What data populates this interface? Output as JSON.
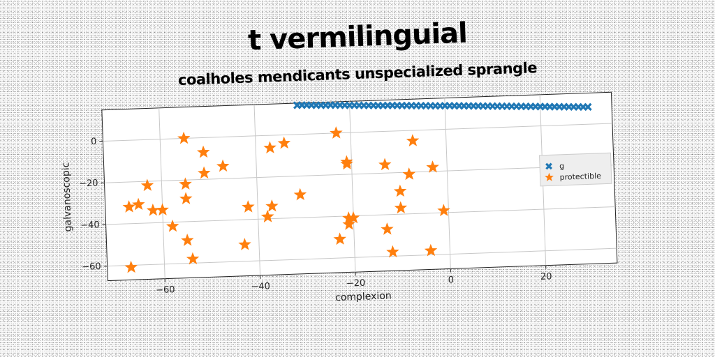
{
  "chart_data": {
    "type": "scatter",
    "title": "t vermilinguial",
    "subtitle": "coalholes mendicants unspecialized sprangle",
    "xlabel": "complexion",
    "ylabel": "galvanoscopic",
    "xlim": [
      -72,
      35
    ],
    "ylim": [
      -67,
      15
    ],
    "xticks": [
      -60,
      -40,
      -20,
      0,
      20
    ],
    "yticks": [
      0,
      -20,
      -40,
      -60
    ],
    "grid": true,
    "legend": "right",
    "series": [
      {
        "name": "g",
        "marker": "x",
        "color": "#1f77b4",
        "x": [
          -31,
          -30,
          -29,
          -28,
          -27,
          -26,
          -25,
          -24,
          -23,
          -22,
          -21,
          -20,
          -19,
          -18,
          -17,
          -16,
          -15,
          -14,
          -13,
          -12,
          -11,
          -10,
          -9,
          -8,
          -7,
          -6,
          -5,
          -4,
          -3,
          -2,
          -1,
          0,
          1,
          2,
          3,
          4,
          5,
          6,
          7,
          8,
          9,
          10,
          11,
          12,
          13,
          14,
          15,
          16,
          17,
          18,
          19,
          20,
          21,
          22,
          23,
          24,
          25,
          26,
          27,
          28,
          29,
          30
        ],
        "y": [
          14,
          14,
          13.9,
          13.8,
          13.7,
          13.6,
          13.5,
          13.5,
          13.4,
          13.3,
          13.2,
          13.1,
          13,
          12.9,
          12.8,
          12.7,
          12.6,
          12.5,
          12.4,
          12.4,
          12.3,
          12.2,
          12.1,
          12,
          11.9,
          11.8,
          11.7,
          11.6,
          11.5,
          11.4,
          11.3,
          11.3,
          11.2,
          11.1,
          11,
          10.9,
          10.8,
          10.7,
          10.6,
          10.5,
          10.4,
          10.3,
          10.2,
          10.1,
          10,
          9.9,
          9.8,
          9.7,
          9.6,
          9.5,
          9.4,
          9.3,
          9.2,
          9.1,
          9,
          8.9,
          8.8,
          8.7,
          8.6,
          8.5,
          8.4,
          8.3
        ]
      },
      {
        "name": "protectible",
        "marker": "star",
        "color": "#ff7f0e",
        "x": [
          -55,
          -51,
          -51,
          -47,
          -63,
          -55,
          -55,
          -62,
          -65,
          -67,
          -60,
          -58,
          -55,
          -67,
          -54,
          -42,
          -43,
          -38,
          -37,
          -38,
          -37,
          -34,
          -31,
          -23,
          -21,
          -21,
          -21,
          -23,
          -21,
          -20,
          -13,
          -13,
          -12,
          -10,
          -10,
          -8,
          -8,
          -7,
          -3,
          -4,
          -1
        ],
        "y": [
          0,
          -7,
          -17,
          -14,
          -22,
          -22,
          -29,
          -34,
          -31,
          -32,
          -34,
          -42,
          -49,
          -61,
          -58,
          -34,
          -52,
          -39,
          -34,
          -39,
          -6,
          -4,
          -29,
          0,
          -15,
          -14,
          -44,
          -51,
          -41,
          -41,
          -16,
          -47,
          -58,
          -29,
          -37,
          -21,
          -21,
          -5,
          -18,
          -58,
          -39
        ]
      }
    ]
  }
}
